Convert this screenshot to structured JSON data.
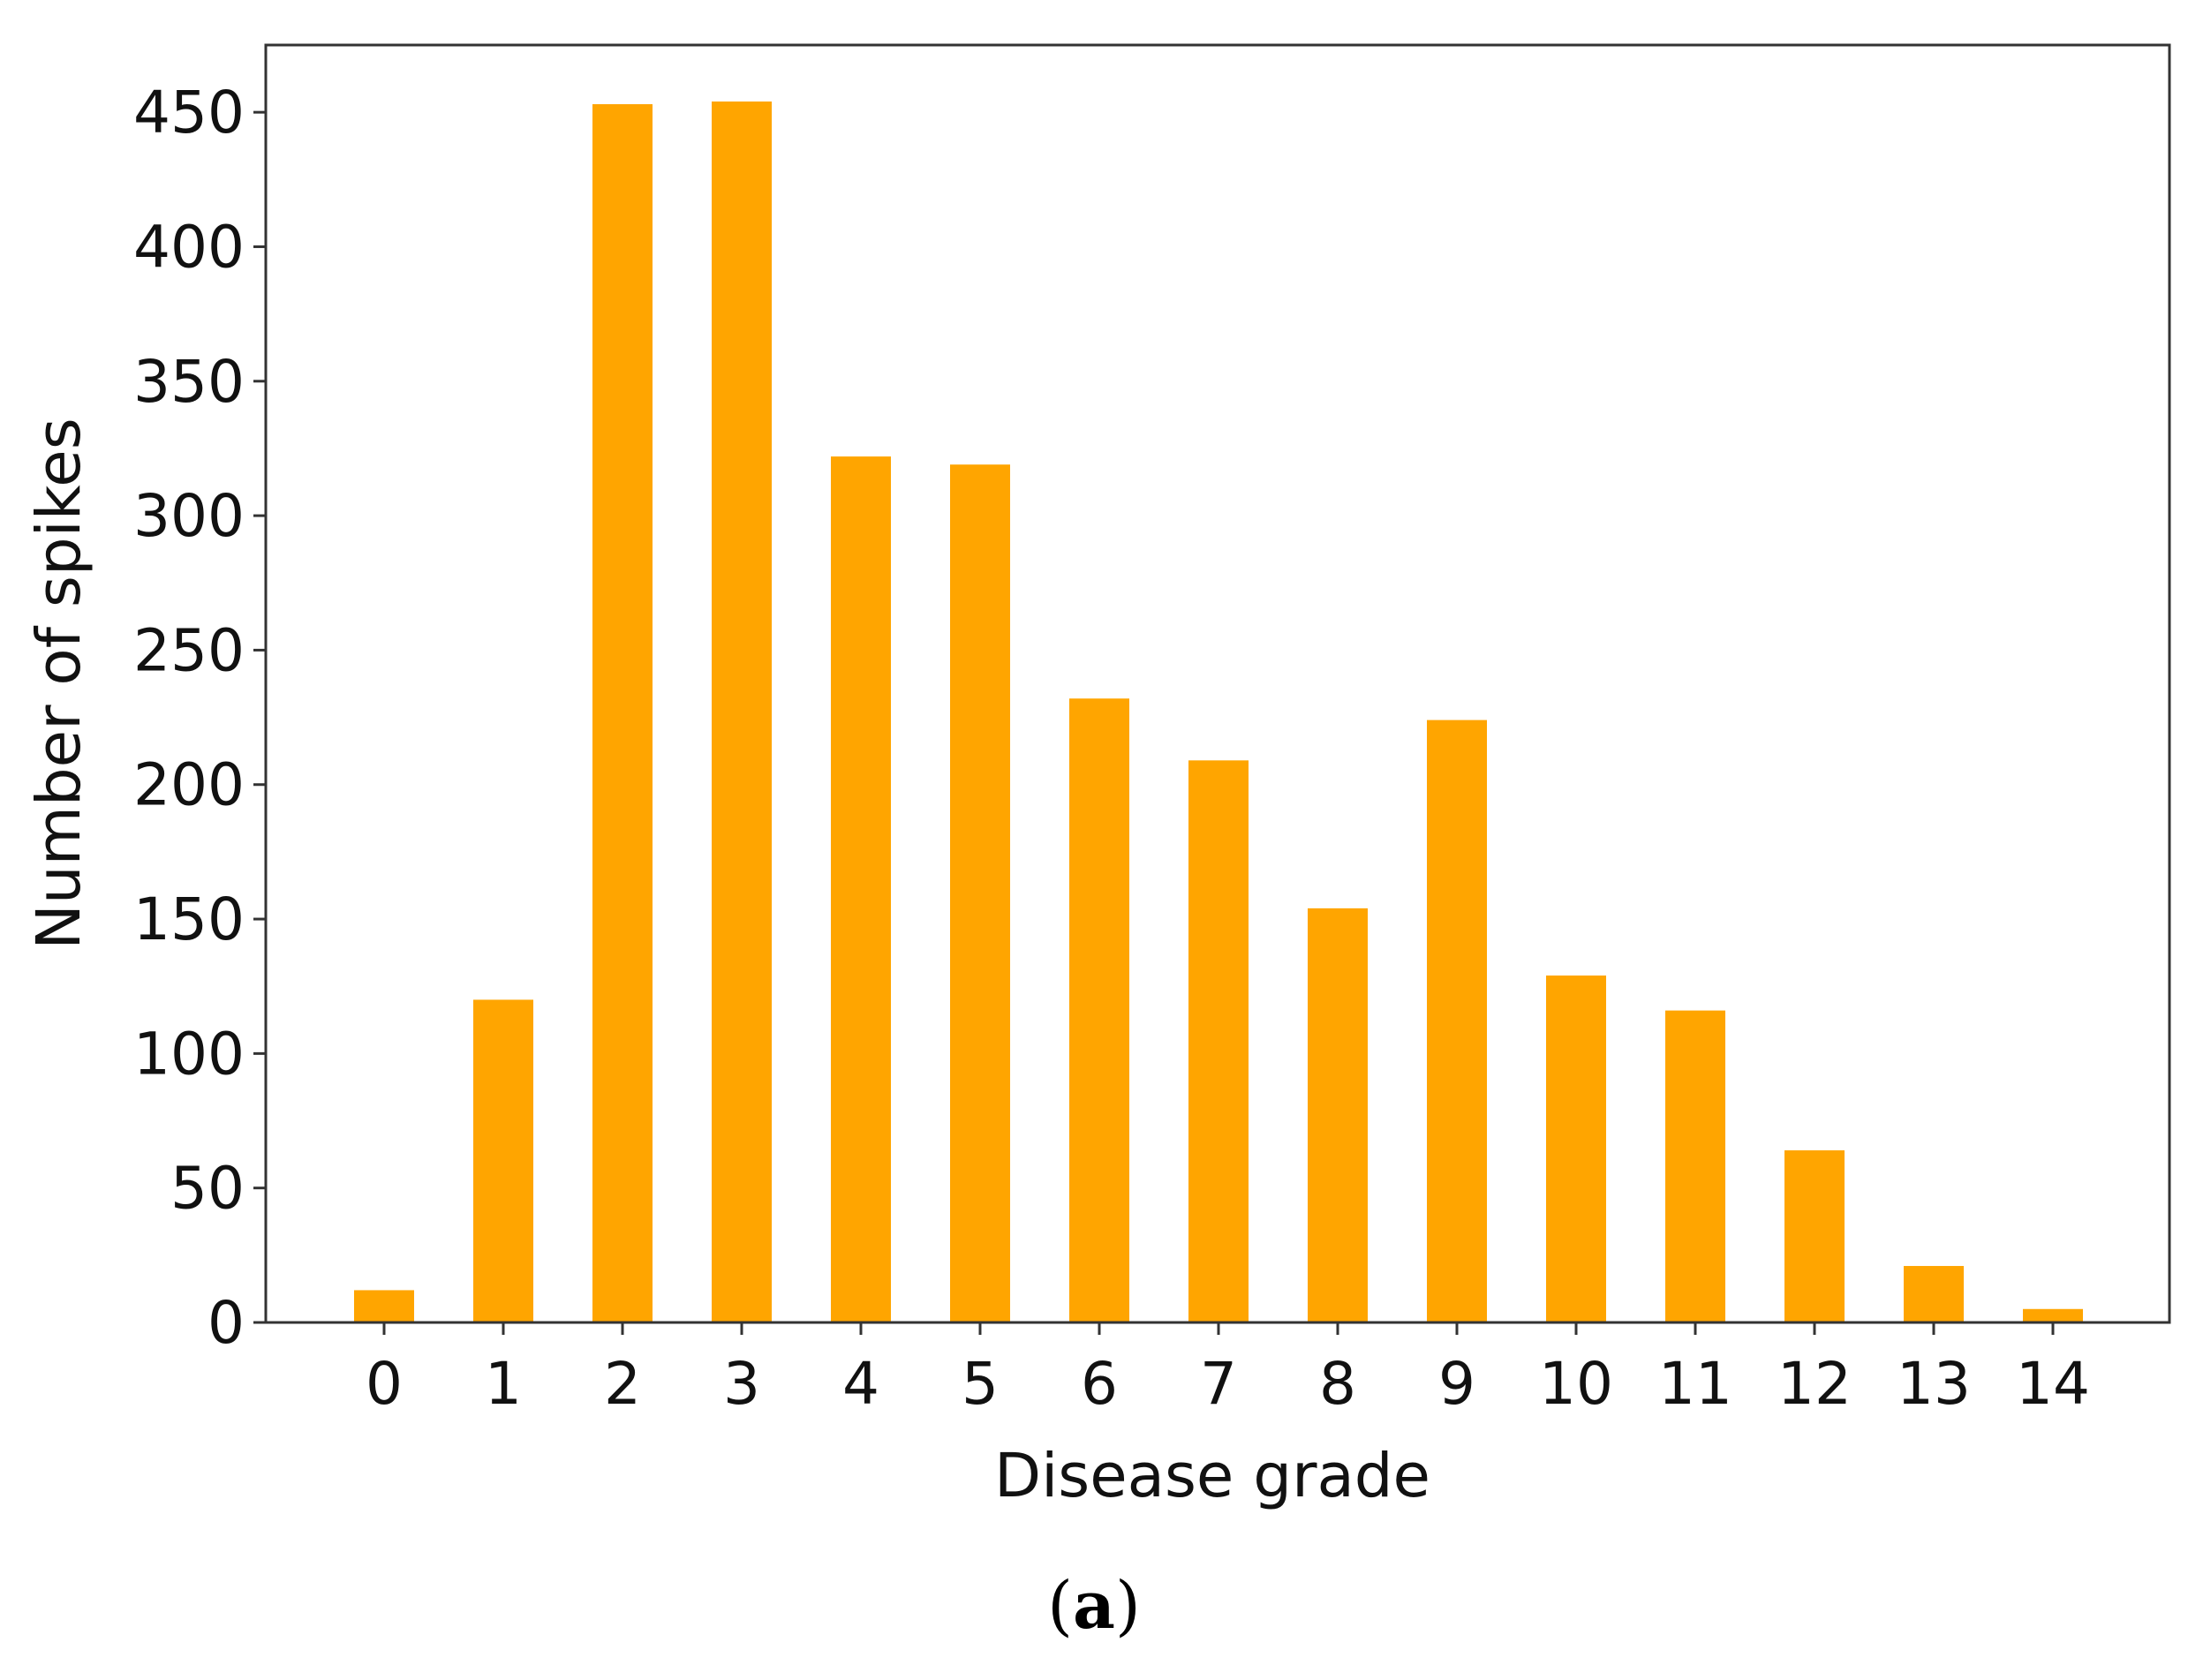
{
  "chart_data": {
    "type": "bar",
    "title": "",
    "xlabel": "Disease grade",
    "ylabel": "Number of spikes",
    "categories": [
      "0",
      "1",
      "2",
      "3",
      "4",
      "5",
      "6",
      "7",
      "8",
      "9",
      "10",
      "11",
      "12",
      "13",
      "14"
    ],
    "values": [
      12,
      120,
      453,
      454,
      322,
      319,
      232,
      209,
      154,
      224,
      129,
      116,
      64,
      21,
      5
    ],
    "ylim": [
      0,
      475
    ],
    "yticks": [
      0,
      50,
      100,
      150,
      200,
      250,
      300,
      350,
      400,
      450
    ],
    "bar_color": "#FFA500",
    "grid": false,
    "legend": "none"
  },
  "figure": {
    "panel_label_open": "(",
    "panel_label_letter": "a",
    "panel_label_close": ")"
  }
}
